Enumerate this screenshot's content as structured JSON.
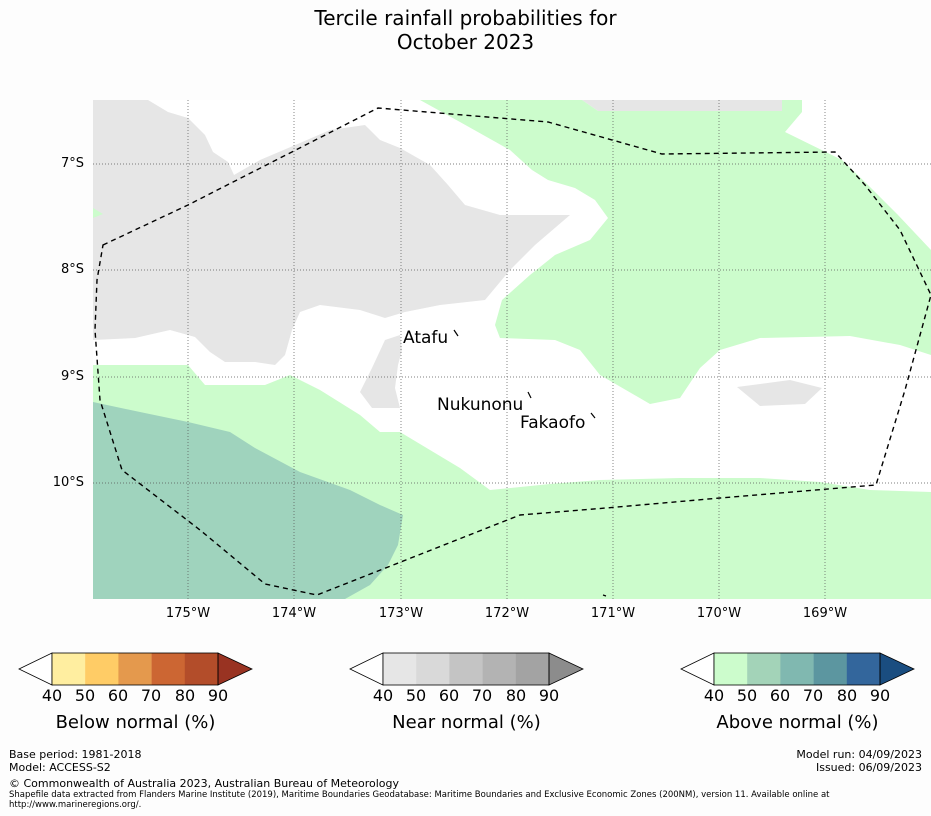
{
  "title": {
    "line1": "Tercile rainfall probabilities for",
    "line2": "October 2023"
  },
  "map": {
    "lat_labels": [
      "7°S",
      "8°S",
      "9°S",
      "10°S"
    ],
    "lon_labels": [
      "175°W",
      "174°W",
      "173°W",
      "172°W",
      "171°W",
      "170°W",
      "169°W"
    ],
    "places": [
      "Atafu",
      "Nukunonu",
      "Fakaofo"
    ],
    "colors": {
      "near_40": "#e6e6e6",
      "above_40": "#ccfccc",
      "above_50": "#9fd3bd",
      "ocean": "#ffffff",
      "grid": "#555555",
      "eez": "#000000"
    }
  },
  "colorbars": [
    {
      "name": "below",
      "label": "Below normal (%)",
      "ticks": [
        "40",
        "50",
        "60",
        "70",
        "80",
        "90"
      ],
      "colors": [
        "#ffffff",
        "#ffeea0",
        "#ffcc66",
        "#e4994d",
        "#cc6633",
        "#b34d2a",
        "#993322"
      ]
    },
    {
      "name": "near",
      "label": "Near normal (%)",
      "ticks": [
        "40",
        "50",
        "60",
        "70",
        "80",
        "90"
      ],
      "colors": [
        "#ffffff",
        "#e6e6e6",
        "#d9d9d9",
        "#c4c4c4",
        "#b3b3b3",
        "#a3a3a3",
        "#8c8c8c"
      ]
    },
    {
      "name": "above",
      "label": "Above normal (%)",
      "ticks": [
        "40",
        "50",
        "60",
        "70",
        "80",
        "90"
      ],
      "colors": [
        "#ffffff",
        "#ccfccc",
        "#a3d3b8",
        "#80b8b0",
        "#5c96a0",
        "#33669c",
        "#1a4d80"
      ]
    }
  ],
  "footer": {
    "base_period": "Base period: 1981-2018",
    "model": "Model: ACCESS-S2",
    "model_run": "Model run: 04/09/2023",
    "issued": "Issued: 06/09/2023",
    "copyright": "© Commonwealth of Australia 2023, Australian Bureau of Meteorology",
    "shapefile_line1": "Shapefile data extracted from Flanders Marine Institute (2019), Maritime Boundaries Geodatabase: Maritime Boundaries and Exclusive Economic Zones (200NM), version 11. Available online at",
    "shapefile_line2": "http://www.marineregions.org/."
  }
}
